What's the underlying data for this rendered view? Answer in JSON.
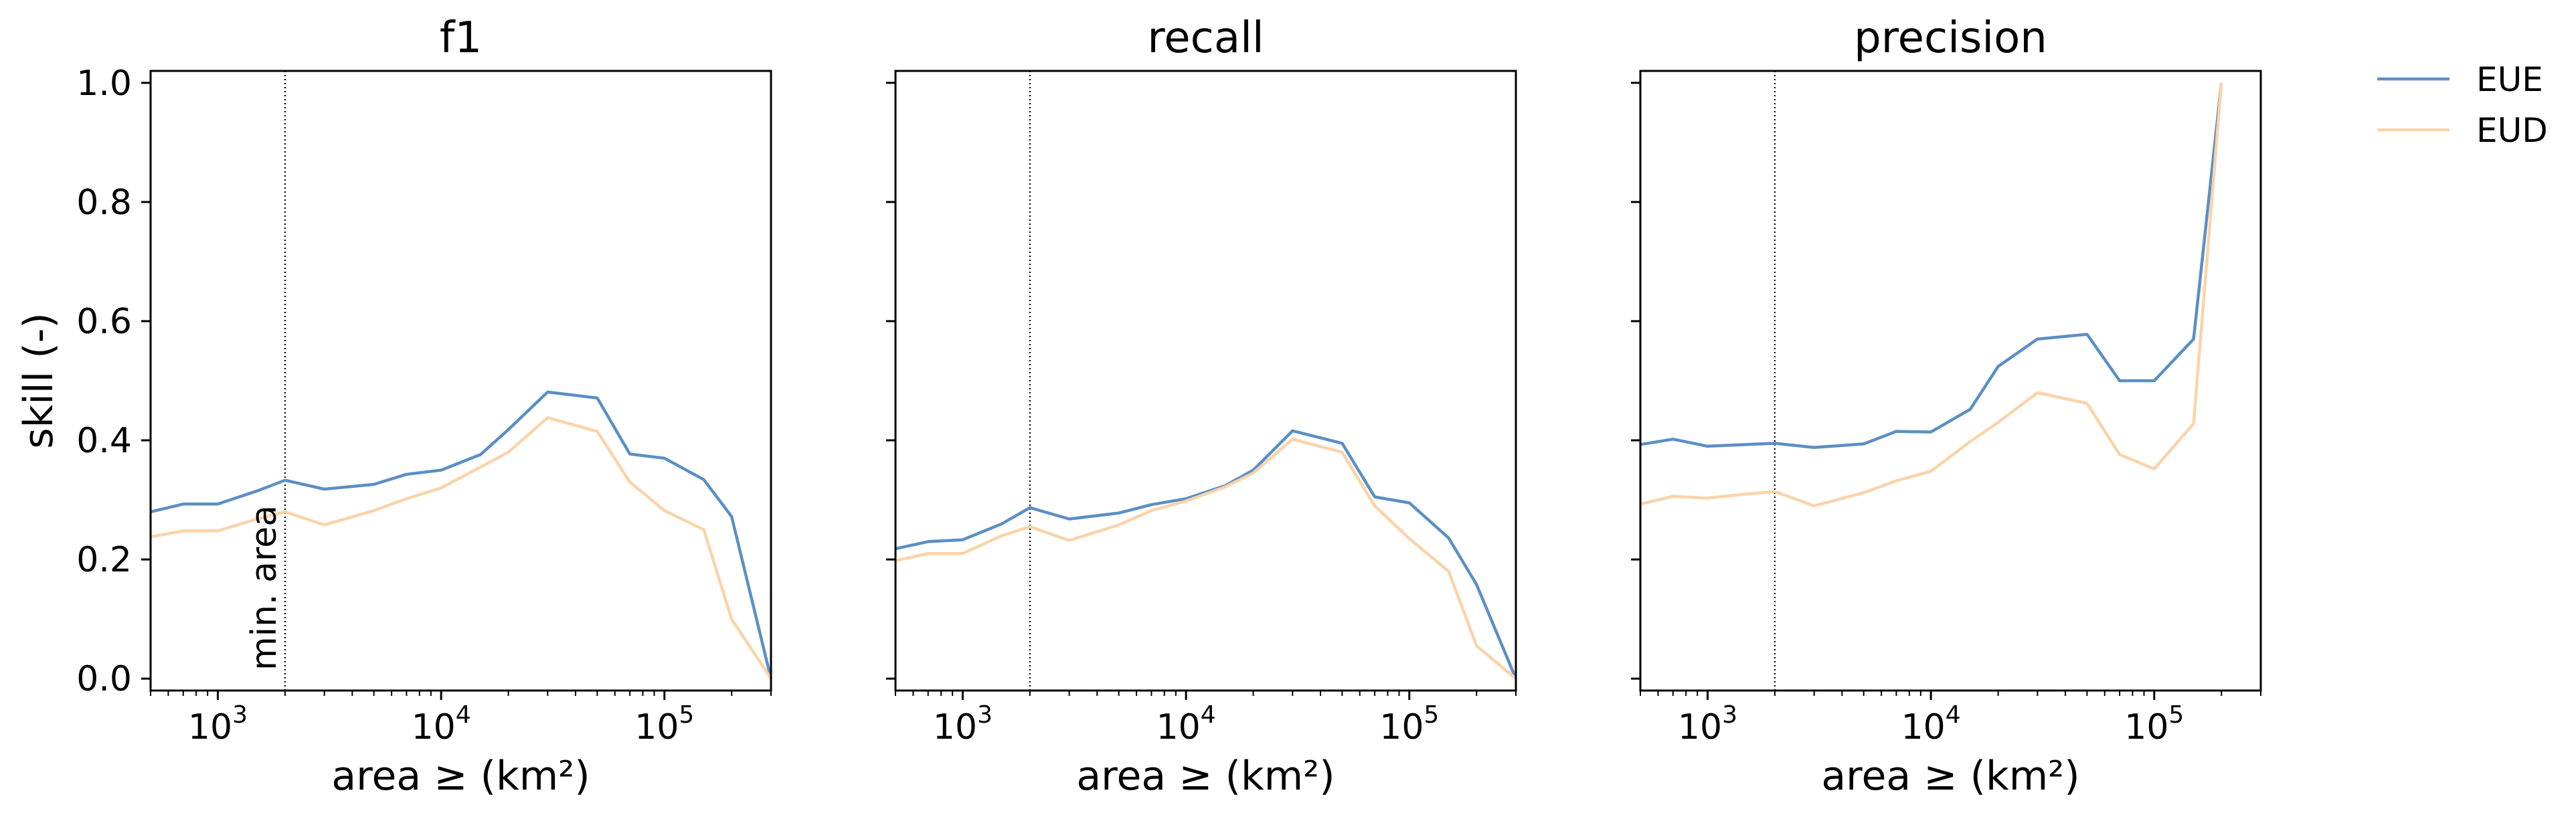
{
  "chart_data": {
    "type": "line",
    "ylabel": "skill (-)",
    "xlabel": "area ≥ (km²)",
    "xscale": "log",
    "xlim": [
      500,
      300000
    ],
    "ylim": [
      -0.02,
      1.02
    ],
    "xticks": [
      {
        "value": 1000,
        "base": "10",
        "exp": "3"
      },
      {
        "value": 10000,
        "base": "10",
        "exp": "4"
      },
      {
        "value": 100000,
        "base": "10",
        "exp": "5"
      }
    ],
    "yticks": [
      {
        "value": 0.0,
        "label": "0.0"
      },
      {
        "value": 0.2,
        "label": "0.2"
      },
      {
        "value": 0.4,
        "label": "0.4"
      },
      {
        "value": 0.6,
        "label": "0.6"
      },
      {
        "value": 0.8,
        "label": "0.8"
      },
      {
        "value": 1.0,
        "label": "1.0"
      }
    ],
    "min_area": {
      "value": 2000,
      "label": "min. area"
    },
    "legend": {
      "placement": "outside-right-top"
    },
    "colors": {
      "EUE": "#5b8fc4",
      "EUD": "#fbd3a9"
    },
    "panels": [
      {
        "title": "f1",
        "series": [
          {
            "name": "EUE",
            "x": [
              500,
              700,
              1000,
              1500,
              2000,
              3000,
              5000,
              7000,
              10000,
              15000,
              20000,
              30000,
              50000,
              70000,
              100000,
              150000,
              200000,
              300000
            ],
            "y": [
              0.28,
              0.293,
              0.293,
              0.315,
              0.333,
              0.318,
              0.326,
              0.343,
              0.35,
              0.376,
              0.418,
              0.481,
              0.471,
              0.377,
              0.37,
              0.334,
              0.272,
              0.0
            ]
          },
          {
            "name": "EUD",
            "x": [
              500,
              700,
              1000,
              1500,
              2000,
              3000,
              5000,
              7000,
              10000,
              15000,
              20000,
              30000,
              50000,
              70000,
              100000,
              150000,
              200000,
              300000
            ],
            "y": [
              0.238,
              0.248,
              0.248,
              0.268,
              0.28,
              0.258,
              0.282,
              0.302,
              0.32,
              0.355,
              0.38,
              0.438,
              0.415,
              0.33,
              0.282,
              0.25,
              0.1,
              0.0
            ]
          }
        ]
      },
      {
        "title": "recall",
        "series": [
          {
            "name": "EUE",
            "x": [
              500,
              700,
              1000,
              1500,
              2000,
              3000,
              5000,
              7000,
              10000,
              15000,
              20000,
              30000,
              50000,
              70000,
              100000,
              150000,
              200000,
              300000
            ],
            "y": [
              0.218,
              0.23,
              0.233,
              0.26,
              0.287,
              0.268,
              0.278,
              0.292,
              0.302,
              0.324,
              0.35,
              0.416,
              0.395,
              0.305,
              0.295,
              0.236,
              0.158,
              0.0
            ]
          },
          {
            "name": "EUD",
            "x": [
              500,
              700,
              1000,
              1500,
              2000,
              3000,
              5000,
              7000,
              10000,
              15000,
              20000,
              30000,
              50000,
              70000,
              100000,
              150000,
              200000,
              300000
            ],
            "y": [
              0.198,
              0.21,
              0.21,
              0.24,
              0.255,
              0.232,
              0.258,
              0.282,
              0.298,
              0.322,
              0.345,
              0.402,
              0.38,
              0.29,
              0.235,
              0.18,
              0.055,
              0.0
            ]
          }
        ]
      },
      {
        "title": "precision",
        "series": [
          {
            "name": "EUE",
            "x": [
              500,
              700,
              1000,
              1500,
              2000,
              3000,
              5000,
              7000,
              10000,
              15000,
              20000,
              30000,
              50000,
              70000,
              100000,
              150000,
              200000
            ],
            "y": [
              0.393,
              0.402,
              0.39,
              0.393,
              0.395,
              0.388,
              0.394,
              0.415,
              0.414,
              0.452,
              0.524,
              0.57,
              0.578,
              0.5,
              0.5,
              0.57,
              1.0
            ]
          },
          {
            "name": "EUD",
            "x": [
              500,
              700,
              1000,
              1500,
              2000,
              3000,
              5000,
              7000,
              10000,
              15000,
              20000,
              30000,
              50000,
              70000,
              100000,
              150000,
              200000
            ],
            "y": [
              0.293,
              0.306,
              0.303,
              0.31,
              0.314,
              0.29,
              0.312,
              0.332,
              0.348,
              0.398,
              0.43,
              0.48,
              0.462,
              0.376,
              0.352,
              0.428,
              1.0
            ]
          }
        ]
      }
    ]
  }
}
